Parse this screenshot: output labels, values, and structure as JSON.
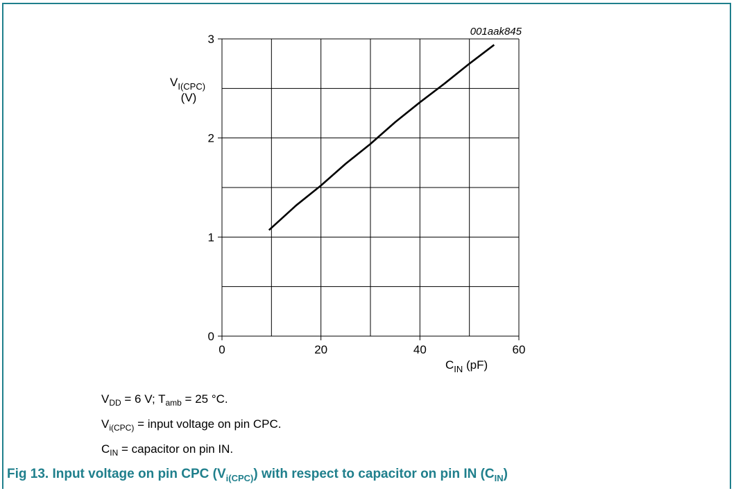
{
  "chart_data": {
    "type": "line",
    "id_code": "001aak845",
    "ylabel_main": "V",
    "ylabel_sub": "I(CPC)",
    "ylabel_unit": "(V)",
    "xlabel_main": "C",
    "xlabel_sub": "IN",
    "xlabel_unit": " (pF)",
    "xlim": [
      0,
      60
    ],
    "ylim": [
      0,
      3
    ],
    "x_ticks": [
      "0",
      "20",
      "40",
      "60"
    ],
    "y_ticks": [
      "0",
      "1",
      "2",
      "3"
    ],
    "grid": true,
    "series": [
      {
        "x": [
          9.5,
          15,
          20,
          25,
          30,
          35,
          40,
          45,
          50,
          55
        ],
        "y": [
          1.07,
          1.32,
          1.52,
          1.74,
          1.94,
          2.16,
          2.36,
          2.55,
          2.75,
          2.94
        ]
      }
    ]
  },
  "notes": {
    "line1": {
      "a": "V",
      "a_sub": "DD",
      "b": " = 6 V; T",
      "b_sub": "amb",
      "c": " = 25 °C."
    },
    "line2": {
      "a": "V",
      "a_sub": "i(CPC)",
      "b": " = input voltage on pin CPC."
    },
    "line3": {
      "a": "C",
      "a_sub": "IN",
      "b": " = capacitor on pin IN."
    }
  },
  "caption": {
    "a": "Fig 13.   Input voltage on pin CPC (V",
    "a_sub": "i(CPC)",
    "b": ") with respect to capacitor on pin IN (C",
    "b_sub": "IN",
    "c": ")"
  },
  "colors": {
    "accent": "#1f7f8c",
    "line": "#000000",
    "grid": "#000000"
  }
}
